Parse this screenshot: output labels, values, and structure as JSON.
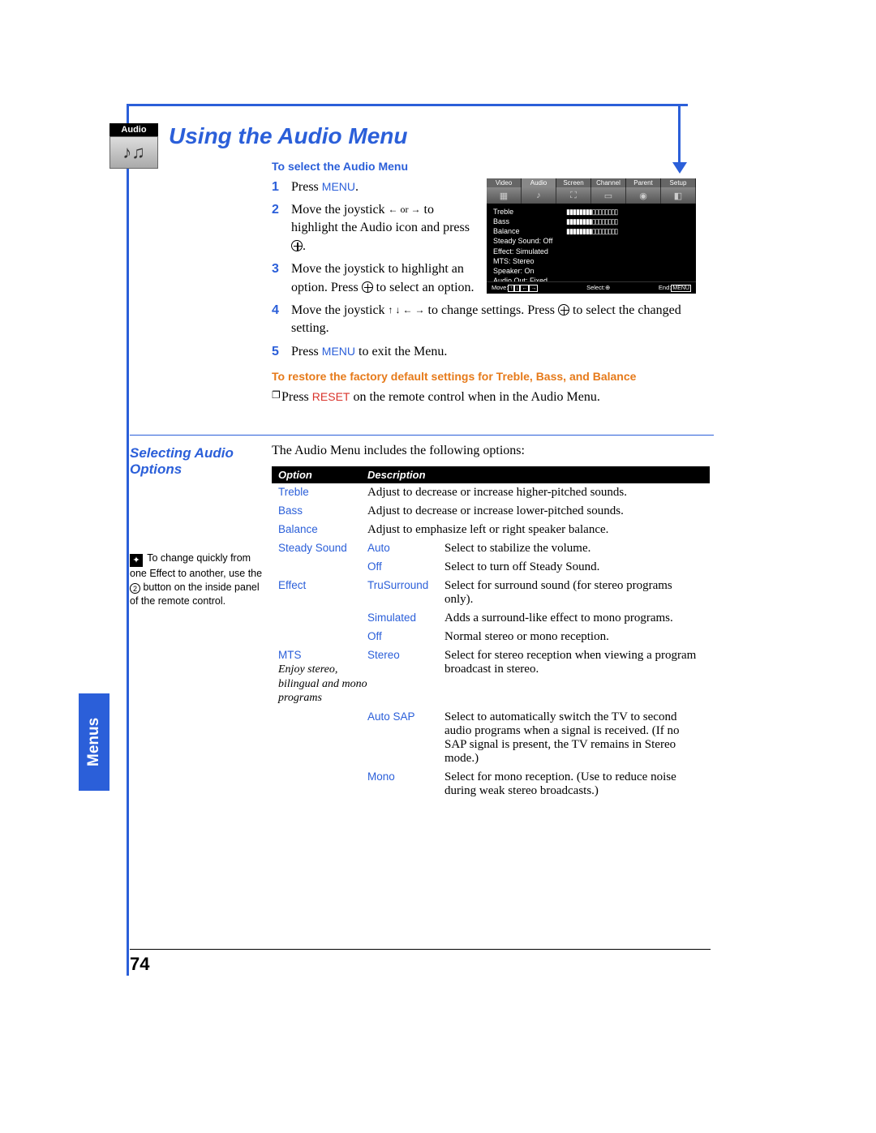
{
  "colors": {
    "blue": "#2b5fd9",
    "orange": "#e67a1a",
    "red": "#d9332b",
    "black": "#000000",
    "white": "#ffffff"
  },
  "page_number": "74",
  "side_tab": "Menus",
  "audio_icon_label": "Audio",
  "title": "Using the Audio Menu",
  "subhead_select": "To select the Audio Menu",
  "steps": [
    {
      "n": "1",
      "text_pre": "Press ",
      "menu_word": "MENU",
      "text_post": "."
    },
    {
      "n": "2",
      "text_pre": "Move the joystick ",
      "arrows": "← or →",
      "text_post": " to highlight the Audio icon and press ",
      "plus": true,
      "tail": "."
    },
    {
      "n": "3",
      "text_pre": "Move the joystick to highlight an option. Press ",
      "plus": true,
      "text_post": " to select an option."
    },
    {
      "n": "4",
      "text_pre": "Move the joystick ",
      "arrows": "↑ ↓ ← →",
      "text_mid": " to change settings. Press ",
      "plus": true,
      "text_post": " to select the changed setting."
    },
    {
      "n": "5",
      "text_pre": "Press ",
      "menu_word": "MENU",
      "text_post": " to exit the Menu."
    }
  ],
  "subhead_restore": "To restore the factory default settings for Treble, Bass, and Balance",
  "restore_bullet_pre": "Press ",
  "restore_reset": "RESET",
  "restore_bullet_post": " on the remote control when in the Audio Menu.",
  "tv": {
    "tabs": [
      "Video",
      "Audio",
      "Screen",
      "Channel",
      "Parent",
      "Setup"
    ],
    "rows": [
      {
        "label": "Treble",
        "val": "▮▮▮▮▮▮▮▮▯▯▯▯▯▯▯▯"
      },
      {
        "label": "Bass",
        "val": "▮▮▮▮▮▮▮▮▯▯▯▯▯▯▯▯"
      },
      {
        "label": "Balance",
        "val": "▮▮▮▮▮▮▮▮▯▯▯▯▯▯▯▯"
      },
      {
        "label": "Steady Sound: Off",
        "val": ""
      },
      {
        "label": "Effect: Simulated",
        "val": ""
      },
      {
        "label": "MTS: Stereo",
        "val": ""
      },
      {
        "label": "Speaker: On",
        "val": ""
      },
      {
        "label": "Audio Out: Fixed",
        "val": ""
      }
    ],
    "footer_move": "Move:",
    "footer_select": "Select:",
    "footer_end": "End:",
    "footer_end_key": "MENU"
  },
  "section2_title": "Selecting Audio Options",
  "section2_intro": "The Audio Menu includes the following options:",
  "table_header": {
    "c1": "Option",
    "c2": "Description"
  },
  "options": [
    {
      "name": "Treble",
      "desc": "Adjust to decrease or increase higher-pitched sounds."
    },
    {
      "name": "Bass",
      "desc": "Adjust to decrease or increase lower-pitched sounds."
    },
    {
      "name": "Balance",
      "desc": "Adjust to emphasize left or right speaker balance."
    },
    {
      "name": "Steady Sound",
      "subs": [
        {
          "sub": "Auto",
          "desc": "Select to stabilize the volume."
        },
        {
          "sub": "Off",
          "desc": "Select to turn off Steady Sound."
        }
      ]
    },
    {
      "name": "Effect",
      "subs": [
        {
          "sub": "TruSurround",
          "desc": "Select for surround sound (for stereo programs only)."
        },
        {
          "sub": "Simulated",
          "desc": "Adds a surround-like effect to mono programs."
        },
        {
          "sub": "Off",
          "desc": "Normal stereo or mono reception."
        }
      ]
    },
    {
      "name": "MTS",
      "note": "Enjoy stereo, bilingual and mono programs",
      "subs": [
        {
          "sub": "Stereo",
          "desc": "Select for stereo reception when viewing a program broadcast in stereo."
        },
        {
          "sub": "Auto SAP",
          "desc": "Select to automatically switch the TV to second audio programs when a signal is received. (If no SAP signal is present, the TV remains in Stereo mode.)"
        },
        {
          "sub": "Mono",
          "desc": "Select for mono reception. (Use to reduce noise during weak stereo broadcasts.)"
        }
      ]
    }
  ],
  "tip": {
    "pre": "To change quickly from one Effect to another, use the ",
    "num": "2",
    "post": " button on the inside panel of the remote control."
  }
}
